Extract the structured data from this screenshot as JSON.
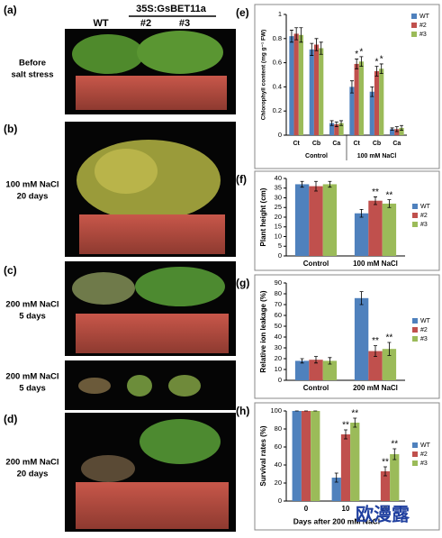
{
  "figure": {
    "photo_header": {
      "wt": "WT",
      "transgenic": "35S:GsBET11a",
      "line2": "#2",
      "line3": "#3"
    },
    "panels": [
      {
        "label": "(a)",
        "caption": [
          "Before",
          "salt stress"
        ]
      },
      {
        "label": "(b)",
        "caption": [
          "100 mM NaCl",
          "20 days"
        ]
      },
      {
        "label": "(c)",
        "caption": [
          "200 mM NaCl",
          "5 days"
        ]
      },
      {
        "label": null,
        "caption": [
          "200 mM NaCl",
          "5 days"
        ]
      },
      {
        "label": "(d)",
        "caption": [
          "200 mM NaCl",
          "20 days"
        ]
      }
    ],
    "watermark": "欧漫露"
  },
  "chart_data": [
    {
      "type": "bar",
      "panel": "(e)",
      "ylabel": "Chlorophyll content (mg g⁻¹ FW)",
      "categories": [
        "Ct",
        "Cb",
        "Ca",
        "Ct",
        "Cb",
        "Ca"
      ],
      "groups": [
        "Control",
        "100 mM NaCl"
      ],
      "ylim": [
        0,
        1
      ],
      "yticks": [
        0,
        0.2,
        0.4,
        0.6,
        0.8,
        1
      ],
      "series": [
        {
          "name": "WT",
          "color": "#4f81bd",
          "values": [
            0.82,
            0.71,
            0.1,
            0.4,
            0.36,
            0.05
          ],
          "errors": [
            0.05,
            0.05,
            0.02,
            0.05,
            0.04,
            0.01
          ],
          "significance": [
            null,
            null,
            null,
            null,
            null,
            null
          ]
        },
        {
          "name": "#2",
          "color": "#c0504d",
          "values": [
            0.84,
            0.75,
            0.09,
            0.59,
            0.53,
            0.05
          ],
          "errors": [
            0.05,
            0.05,
            0.02,
            0.04,
            0.04,
            0.02
          ],
          "significance": [
            null,
            null,
            null,
            "*",
            "*",
            null
          ]
        },
        {
          "name": "#3",
          "color": "#9bbb59",
          "values": [
            0.83,
            0.72,
            0.1,
            0.61,
            0.55,
            0.06
          ],
          "errors": [
            0.06,
            0.05,
            0.02,
            0.04,
            0.04,
            0.02
          ],
          "significance": [
            null,
            null,
            null,
            "*",
            "*",
            null
          ]
        }
      ]
    },
    {
      "type": "bar",
      "panel": "(f)",
      "ylabel": "Plant height (cm)",
      "categories": [
        "Control",
        "100 mM NaCl"
      ],
      "ylim": [
        0,
        40
      ],
      "yticks": [
        0,
        5,
        10,
        15,
        20,
        25,
        30,
        35,
        40
      ],
      "series": [
        {
          "name": "WT",
          "color": "#4f81bd",
          "values": [
            37,
            22
          ],
          "errors": [
            1.5,
            2
          ],
          "significance": [
            null,
            null
          ]
        },
        {
          "name": "#2",
          "color": "#c0504d",
          "values": [
            36,
            28.5
          ],
          "errors": [
            2.5,
            2
          ],
          "significance": [
            null,
            "**"
          ]
        },
        {
          "name": "#3",
          "color": "#9bbb59",
          "values": [
            37,
            27
          ],
          "errors": [
            1.5,
            2
          ],
          "significance": [
            null,
            "**"
          ]
        }
      ]
    },
    {
      "type": "bar",
      "panel": "(g)",
      "ylabel": "Relative ion leakage (%)",
      "categories": [
        "Control",
        "200 mM NaCl"
      ],
      "ylim": [
        0,
        90
      ],
      "yticks": [
        0,
        10,
        20,
        30,
        40,
        50,
        60,
        70,
        80,
        90
      ],
      "series": [
        {
          "name": "WT",
          "color": "#4f81bd",
          "values": [
            18,
            76
          ],
          "errors": [
            2,
            6
          ]
        },
        {
          "name": "#2",
          "color": "#c0504d",
          "values": [
            19,
            27
          ],
          "errors": [
            3,
            5
          ],
          "significance": [
            null,
            "**"
          ]
        },
        {
          "name": "#3",
          "color": "#9bbb59",
          "values": [
            18,
            29
          ],
          "errors": [
            3,
            6
          ],
          "significance": [
            null,
            "**"
          ]
        }
      ]
    },
    {
      "type": "bar",
      "panel": "(h)",
      "ylabel": "Survival rates (%)",
      "xlabel": "Days after 200 mM NaCl",
      "categories": [
        "0",
        "10",
        "20"
      ],
      "ylim": [
        0,
        100
      ],
      "yticks": [
        0,
        20,
        40,
        60,
        80,
        100
      ],
      "series": [
        {
          "name": "WT",
          "color": "#4f81bd",
          "values": [
            100,
            26,
            0
          ],
          "errors": [
            0,
            5,
            0
          ]
        },
        {
          "name": "#2",
          "color": "#c0504d",
          "values": [
            100,
            74,
            33
          ],
          "errors": [
            0,
            5,
            5
          ],
          "significance": [
            null,
            "**",
            "**"
          ]
        },
        {
          "name": "#3",
          "color": "#9bbb59",
          "values": [
            100,
            87,
            52
          ],
          "errors": [
            0,
            5,
            6
          ],
          "significance": [
            null,
            "**",
            "**"
          ]
        }
      ]
    }
  ]
}
